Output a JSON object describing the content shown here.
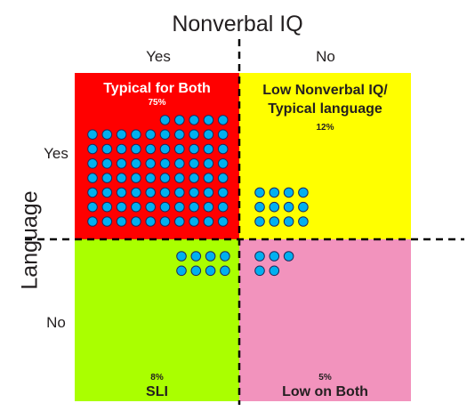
{
  "title_top": "Nonverbal IQ",
  "title_side": "Language",
  "columns": [
    "Yes",
    "No"
  ],
  "rows": [
    "Yes",
    "No"
  ],
  "quadrants": {
    "top_left": {
      "title": "Typical for Both",
      "percent": "75%",
      "count": 75,
      "color": "#ff0000"
    },
    "top_right": {
      "title": "Low Nonverbal IQ/\nTypical language",
      "percent": "12%",
      "count": 12,
      "color": "#ffff00"
    },
    "bottom_left": {
      "title": "SLI",
      "percent": "8%",
      "count": 8,
      "color": "#aaff00"
    },
    "bottom_right": {
      "title": "Low on Both",
      "percent": "5%",
      "count": 5,
      "color": "#f293bd"
    }
  },
  "dot_color": "#00b0f0"
}
